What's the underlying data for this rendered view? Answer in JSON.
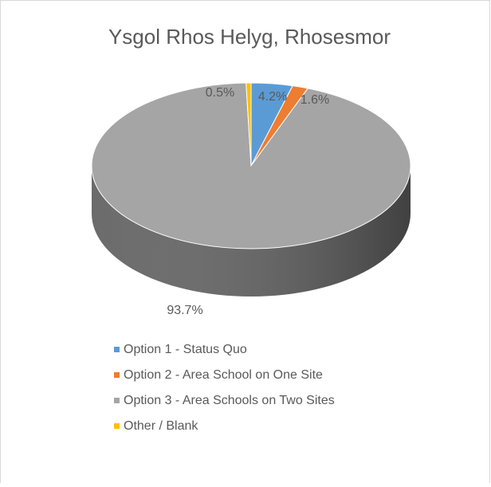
{
  "chart_data": {
    "type": "pie",
    "title": "Ysgol Rhos Helyg, Rhosesmor",
    "categories": [
      "Option 1 - Status Quo",
      "Option 2 - Area School on One Site",
      "Option 3 - Area Schools on Two Sites",
      "Other / Blank"
    ],
    "values": [
      4.2,
      1.6,
      93.7,
      0.5
    ],
    "value_labels": [
      "4.2%",
      "1.6%",
      "93.7%",
      "0.5%"
    ],
    "colors": [
      "#5b9bd5",
      "#ed7d31",
      "#a5a5a5",
      "#ffc000"
    ],
    "legend": "bottom"
  }
}
